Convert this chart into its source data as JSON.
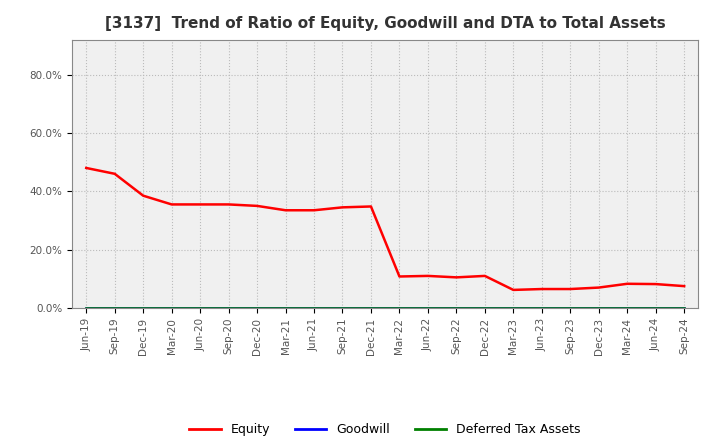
{
  "title": "[3137]  Trend of Ratio of Equity, Goodwill and DTA to Total Assets",
  "x_labels": [
    "Jun-19",
    "Sep-19",
    "Dec-19",
    "Mar-20",
    "Jun-20",
    "Sep-20",
    "Dec-20",
    "Mar-21",
    "Jun-21",
    "Sep-21",
    "Dec-21",
    "Mar-22",
    "Jun-22",
    "Sep-22",
    "Dec-22",
    "Mar-23",
    "Jun-23",
    "Sep-23",
    "Dec-23",
    "Mar-24",
    "Jun-24",
    "Sep-24"
  ],
  "equity": [
    0.48,
    0.46,
    0.385,
    0.355,
    0.355,
    0.355,
    0.35,
    0.335,
    0.335,
    0.345,
    0.348,
    0.108,
    0.11,
    0.105,
    0.11,
    0.062,
    0.065,
    0.065,
    0.07,
    0.083,
    0.082,
    0.075
  ],
  "goodwill": [
    0.0,
    0.0,
    0.0,
    0.0,
    0.0,
    0.0,
    0.0,
    0.0,
    0.0,
    0.0,
    0.0,
    0.0,
    0.0,
    0.0,
    0.0,
    0.0,
    0.0,
    0.0,
    0.0,
    0.0,
    0.0,
    0.0
  ],
  "dta": [
    0.0,
    0.0,
    0.0,
    0.0,
    0.0,
    0.0,
    0.0,
    0.0,
    0.0,
    0.0,
    0.0,
    0.0,
    0.0,
    0.0,
    0.0,
    0.0,
    0.0,
    0.0,
    0.0,
    0.0,
    0.0,
    0.0
  ],
  "equity_color": "#ff0000",
  "goodwill_color": "#0000ff",
  "dta_color": "#008000",
  "ylim": [
    0.0,
    0.92
  ],
  "yticks": [
    0.0,
    0.2,
    0.4,
    0.6,
    0.8
  ],
  "ytick_labels": [
    "0.0%",
    "20.0%",
    "40.0%",
    "60.0%",
    "80.0%"
  ],
  "background_color": "#ffffff",
  "plot_bg_color": "#f0f0f0",
  "grid_color": "#bbbbbb",
  "title_fontsize": 11,
  "tick_fontsize": 7.5,
  "legend_fontsize": 9,
  "line_width": 1.8
}
